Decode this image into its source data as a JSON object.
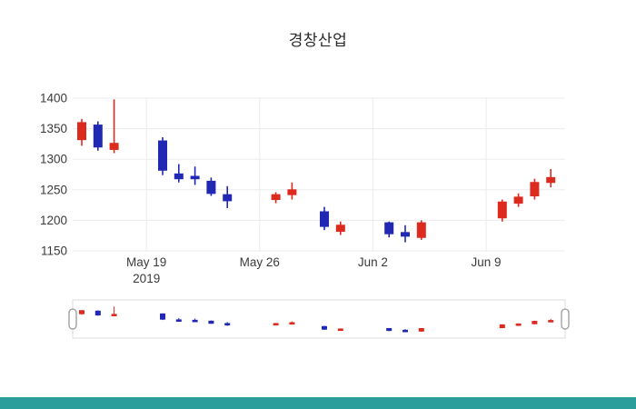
{
  "page": {
    "background": "#ffffff",
    "bottom_bar_color": "#2b9d9b"
  },
  "chart_data": {
    "type": "candlestick",
    "title": "경창산업",
    "increasing_color": "#dd2a1e",
    "decreasing_color": "#2028b4",
    "grid": true,
    "legend": "none",
    "rangeslider": true,
    "ylim": [
      1150,
      1400
    ],
    "yticks": [
      1400,
      1350,
      1300,
      1250,
      1200,
      1150
    ],
    "xticks": [
      {
        "label": "May 19",
        "sub": "2019",
        "date": "2019-05-19"
      },
      {
        "label": "May 26",
        "sub": "",
        "date": "2019-05-26"
      },
      {
        "label": "Jun 2",
        "sub": "",
        "date": "2019-06-02"
      },
      {
        "label": "Jun 9",
        "sub": "",
        "date": "2019-06-09"
      }
    ],
    "candles": [
      {
        "date": "2019-05-15",
        "open": 1332,
        "high": 1366,
        "low": 1322,
        "close": 1360
      },
      {
        "date": "2019-05-16",
        "open": 1356,
        "high": 1362,
        "low": 1314,
        "close": 1320
      },
      {
        "date": "2019-05-17",
        "open": 1316,
        "high": 1398,
        "low": 1310,
        "close": 1326
      },
      {
        "date": "2019-05-20",
        "open": 1330,
        "high": 1336,
        "low": 1274,
        "close": 1282
      },
      {
        "date": "2019-05-21",
        "open": 1276,
        "high": 1292,
        "low": 1262,
        "close": 1268
      },
      {
        "date": "2019-05-22",
        "open": 1272,
        "high": 1288,
        "low": 1258,
        "close": 1268
      },
      {
        "date": "2019-05-23",
        "open": 1264,
        "high": 1270,
        "low": 1240,
        "close": 1244
      },
      {
        "date": "2019-05-24",
        "open": 1242,
        "high": 1256,
        "low": 1220,
        "close": 1232
      },
      {
        "date": "2019-05-27",
        "open": 1234,
        "high": 1246,
        "low": 1228,
        "close": 1242
      },
      {
        "date": "2019-05-28",
        "open": 1242,
        "high": 1262,
        "low": 1234,
        "close": 1250
      },
      {
        "date": "2019-05-30",
        "open": 1214,
        "high": 1222,
        "low": 1184,
        "close": 1190
      },
      {
        "date": "2019-05-31",
        "open": 1182,
        "high": 1198,
        "low": 1176,
        "close": 1192
      },
      {
        "date": "2019-06-03",
        "open": 1196,
        "high": 1198,
        "low": 1172,
        "close": 1178
      },
      {
        "date": "2019-06-04",
        "open": 1180,
        "high": 1192,
        "low": 1164,
        "close": 1174
      },
      {
        "date": "2019-06-05",
        "open": 1172,
        "high": 1200,
        "low": 1168,
        "close": 1196
      },
      {
        "date": "2019-06-10",
        "open": 1204,
        "high": 1234,
        "low": 1198,
        "close": 1230
      },
      {
        "date": "2019-06-11",
        "open": 1228,
        "high": 1244,
        "low": 1222,
        "close": 1238
      },
      {
        "date": "2019-06-12",
        "open": 1240,
        "high": 1268,
        "low": 1234,
        "close": 1262
      },
      {
        "date": "2019-06-13",
        "open": 1262,
        "high": 1284,
        "low": 1254,
        "close": 1270
      }
    ]
  }
}
